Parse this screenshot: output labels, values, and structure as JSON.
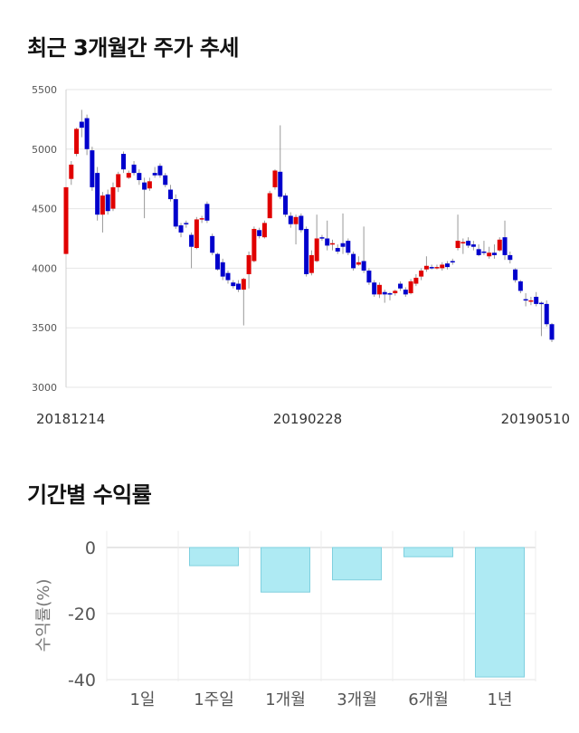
{
  "sections": {
    "price_title": "최근 3개월간 주가 추세",
    "return_title": "기간별 수익률"
  },
  "chart_data": [
    {
      "type": "candlestick",
      "y_ticks": [
        "5500",
        "5000",
        "4500",
        "4000",
        "3500",
        "3000"
      ],
      "ylim": [
        3000,
        5500
      ],
      "x_tick_labels": [
        "20181214",
        "20190228",
        "20190510"
      ],
      "grid": true,
      "colors": {
        "up": "#e00000",
        "down": "#0000cc",
        "wick": "#999999"
      },
      "candles": [
        [
          4120,
          4680,
          4120,
          4680
        ],
        [
          4750,
          4870,
          4700,
          4900
        ],
        [
          4960,
          5170,
          4940,
          5180
        ],
        [
          5230,
          5180,
          5100,
          5330
        ],
        [
          5260,
          5000,
          4950,
          5290
        ],
        [
          4990,
          4680,
          4650,
          5020
        ],
        [
          4800,
          4450,
          4400,
          4850
        ],
        [
          4450,
          4610,
          4300,
          4640
        ],
        [
          4620,
          4480,
          4450,
          4660
        ],
        [
          4500,
          4680,
          4480,
          4720
        ],
        [
          4680,
          4790,
          4640,
          4810
        ],
        [
          4960,
          4830,
          4800,
          4980
        ],
        [
          4760,
          4800,
          4750,
          4820
        ],
        [
          4870,
          4800,
          4780,
          4900
        ],
        [
          4800,
          4740,
          4700,
          4830
        ],
        [
          4720,
          4660,
          4420,
          4760
        ],
        [
          4670,
          4730,
          4650,
          4760
        ],
        [
          4800,
          4780,
          4760,
          4850
        ],
        [
          4860,
          4780,
          4760,
          4880
        ],
        [
          4780,
          4700,
          4680,
          4800
        ],
        [
          4660,
          4580,
          4560,
          4700
        ],
        [
          4580,
          4350,
          4330,
          4620
        ],
        [
          4360,
          4300,
          4260,
          4380
        ],
        [
          4380,
          4370,
          4340,
          4400
        ],
        [
          4280,
          4180,
          4000,
          4300
        ],
        [
          4170,
          4410,
          4160,
          4430
        ],
        [
          4420,
          4420,
          4380,
          4440
        ],
        [
          4540,
          4400,
          4380,
          4560
        ],
        [
          4270,
          4130,
          4110,
          4290
        ],
        [
          4120,
          3990,
          3980,
          4130
        ],
        [
          4050,
          3930,
          3900,
          4080
        ],
        [
          3960,
          3900,
          3870,
          3980
        ],
        [
          3880,
          3850,
          3830,
          3900
        ],
        [
          3870,
          3820,
          3800,
          3900
        ],
        [
          3820,
          3910,
          3520,
          3920
        ],
        [
          3950,
          4110,
          3830,
          4140
        ],
        [
          4060,
          4330,
          4050,
          4350
        ],
        [
          4320,
          4270,
          4250,
          4340
        ],
        [
          4260,
          4380,
          4250,
          4400
        ],
        [
          4420,
          4630,
          4420,
          4650
        ],
        [
          4680,
          4820,
          4660,
          4830
        ],
        [
          4810,
          4600,
          4580,
          5200
        ],
        [
          4610,
          4450,
          4430,
          4630
        ],
        [
          4440,
          4370,
          4340,
          4470
        ],
        [
          4370,
          4430,
          4200,
          4450
        ],
        [
          4440,
          4320,
          4300,
          4460
        ],
        [
          4330,
          3950,
          3930,
          4350
        ],
        [
          3960,
          4110,
          3940,
          4150
        ],
        [
          4060,
          4250,
          4050,
          4450
        ],
        [
          4260,
          4250,
          4230,
          4280
        ],
        [
          4250,
          4190,
          4150,
          4400
        ],
        [
          4200,
          4210,
          4150,
          4240
        ],
        [
          4170,
          4140,
          4120,
          4200
        ],
        [
          4210,
          4180,
          4120,
          4460
        ],
        [
          4230,
          4130,
          4110,
          4250
        ],
        [
          4120,
          4000,
          3980,
          4140
        ],
        [
          4030,
          4050,
          4020,
          4100
        ],
        [
          4060,
          3980,
          3960,
          4350
        ],
        [
          3980,
          3880,
          3860,
          4000
        ],
        [
          3880,
          3780,
          3760,
          3900
        ],
        [
          3780,
          3860,
          3750,
          3880
        ],
        [
          3800,
          3780,
          3710,
          3820
        ],
        [
          3790,
          3780,
          3730,
          3800
        ],
        [
          3790,
          3810,
          3770,
          3820
        ],
        [
          3870,
          3830,
          3810,
          3890
        ],
        [
          3820,
          3780,
          3760,
          3840
        ],
        [
          3790,
          3890,
          3780,
          3910
        ],
        [
          3870,
          3920,
          3850,
          3950
        ],
        [
          3930,
          3980,
          3900,
          4000
        ],
        [
          3990,
          4020,
          3970,
          4100
        ],
        [
          4010,
          4000,
          3990,
          4030
        ],
        [
          4000,
          4010,
          3990,
          4030
        ],
        [
          4000,
          4030,
          3980,
          4050
        ],
        [
          4040,
          4010,
          3990,
          4060
        ],
        [
          4060,
          4050,
          4030,
          4080
        ],
        [
          4170,
          4230,
          4150,
          4450
        ],
        [
          4210,
          4220,
          4120,
          4250
        ],
        [
          4230,
          4190,
          4170,
          4260
        ],
        [
          4200,
          4180,
          4150,
          4230
        ],
        [
          4160,
          4110,
          4100,
          4200
        ],
        [
          4140,
          4130,
          4110,
          4230
        ],
        [
          4100,
          4130,
          4080,
          4180
        ],
        [
          4130,
          4110,
          4080,
          4200
        ],
        [
          4150,
          4240,
          4140,
          4260
        ],
        [
          4260,
          4110,
          4070,
          4400
        ],
        [
          4110,
          4070,
          4040,
          4140
        ],
        [
          3990,
          3900,
          3880,
          4000
        ],
        [
          3890,
          3810,
          3790,
          3900
        ],
        [
          3740,
          3730,
          3680,
          3790
        ],
        [
          3720,
          3730,
          3690,
          3760
        ],
        [
          3760,
          3700,
          3680,
          3800
        ],
        [
          3710,
          3700,
          3430,
          3720
        ],
        [
          3700,
          3530,
          3510,
          3730
        ],
        [
          3530,
          3400,
          3380,
          3540
        ]
      ]
    },
    {
      "type": "bar",
      "categories": [
        "1일",
        "1주일",
        "1개월",
        "3개월",
        "6개월",
        "1년"
      ],
      "values": [
        0,
        -5.5,
        -13.5,
        -9.8,
        -2.8,
        -39.2
      ],
      "ylim": [
        -40,
        5
      ],
      "y_ticks": [
        "0",
        "-20",
        "-40"
      ],
      "ylabel": "수익률(%)",
      "colors": {
        "fill": "#aeeaf3",
        "stroke": "#7fd0df"
      }
    }
  ]
}
